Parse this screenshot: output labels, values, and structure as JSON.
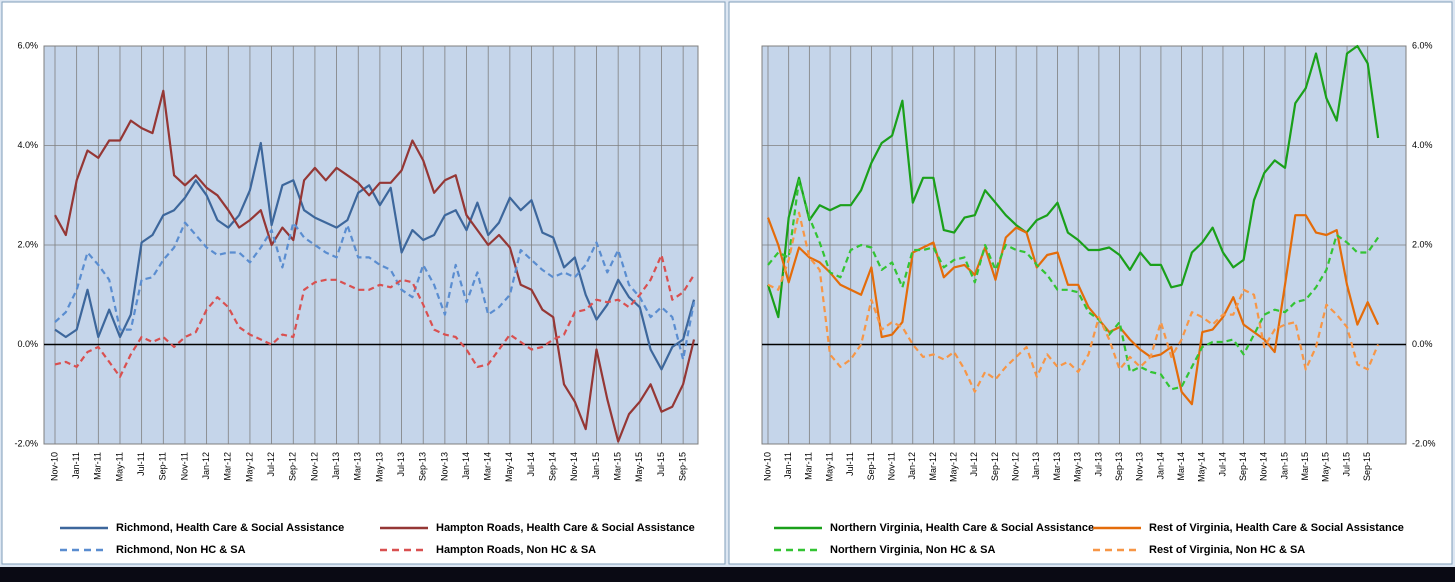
{
  "chart_data": [
    {
      "type": "line",
      "categories": [
        "Nov-10",
        null,
        "Jan-11",
        null,
        "Mar-11",
        null,
        "May-11",
        null,
        "Jul-11",
        null,
        "Sep-11",
        null,
        "Nov-11",
        null,
        "Jan-12",
        null,
        "Mar-12",
        null,
        "May-12",
        null,
        "Jul-12",
        null,
        "Sep-12",
        null,
        "Nov-12",
        null,
        "Jan-13",
        null,
        "Mar-13",
        null,
        "May-13",
        null,
        "Jul-13",
        null,
        "Sep-13",
        null,
        "Nov-13",
        null,
        "Jan-14",
        null,
        "Mar-14",
        null,
        "May-14",
        null,
        "Jul-14",
        null,
        "Sep-14",
        null,
        "Nov-14",
        null,
        "Jan-15",
        null,
        "Mar-15",
        null,
        "May-15",
        null,
        "Jul-15",
        null,
        "Sep-15",
        null
      ],
      "ylim": [
        -2,
        6
      ],
      "yticks": [
        {
          "value": -2,
          "label": "-2.0%"
        },
        {
          "value": 0,
          "label": "0.0%"
        },
        {
          "value": 2,
          "label": "2.0%"
        },
        {
          "value": 4,
          "label": "4.0%"
        },
        {
          "value": 6,
          "label": "6.0%"
        }
      ],
      "grid": true,
      "series": [
        {
          "name": "Richmond, Health Care & Social Assistance",
          "color": "#3d679c",
          "dashed": false,
          "values": [
            0.3,
            0.15,
            0.3,
            1.1,
            0.15,
            0.7,
            0.15,
            0.6,
            2.05,
            2.2,
            2.6,
            2.7,
            2.95,
            3.3,
            3.0,
            2.5,
            2.35,
            2.6,
            3.1,
            4.05,
            2.4,
            3.2,
            3.3,
            2.7,
            2.55,
            2.45,
            2.35,
            2.5,
            3.05,
            3.2,
            2.8,
            3.15,
            1.85,
            2.3,
            2.1,
            2.2,
            2.6,
            2.7,
            2.3,
            2.85,
            2.2,
            2.45,
            2.95,
            2.7,
            2.9,
            2.25,
            2.15,
            1.55,
            1.75,
            1.0,
            0.5,
            0.8,
            1.3,
            0.95,
            0.75,
            -0.1,
            -0.5,
            -0.05,
            0.1,
            0.9
          ]
        },
        {
          "name": "Hampton Roads, Health Care & Social Assistance",
          "color": "#953735",
          "dashed": false,
          "values": [
            2.6,
            2.2,
            3.3,
            3.9,
            3.75,
            4.1,
            4.1,
            4.5,
            4.35,
            4.25,
            5.1,
            3.4,
            3.2,
            3.4,
            3.15,
            3.0,
            2.7,
            2.35,
            2.5,
            2.7,
            2.0,
            2.35,
            2.1,
            3.3,
            3.55,
            3.3,
            3.55,
            3.4,
            3.25,
            3.0,
            3.25,
            3.25,
            3.5,
            4.1,
            3.7,
            3.05,
            3.3,
            3.4,
            2.6,
            2.3,
            2.0,
            2.2,
            1.95,
            1.2,
            1.1,
            0.7,
            0.55,
            -0.8,
            -1.15,
            -1.7,
            -0.1,
            -1.1,
            -1.95,
            -1.4,
            -1.15,
            -0.8,
            -1.35,
            -1.25,
            -0.8,
            0.1
          ]
        },
        {
          "name": "Richmond, Non HC & SA",
          "color": "#5a8dd0",
          "dashed": true,
          "values": [
            0.45,
            0.65,
            1.1,
            1.85,
            1.6,
            1.3,
            0.3,
            0.3,
            1.3,
            1.35,
            1.7,
            1.95,
            2.45,
            2.2,
            1.95,
            1.8,
            1.85,
            1.85,
            1.65,
            1.95,
            2.3,
            1.55,
            2.45,
            2.15,
            2.0,
            1.85,
            1.75,
            2.4,
            1.75,
            1.75,
            1.6,
            1.5,
            1.1,
            0.95,
            1.6,
            1.2,
            0.6,
            1.6,
            0.85,
            1.45,
            0.6,
            0.75,
            1.0,
            1.9,
            1.7,
            1.5,
            1.35,
            1.45,
            1.35,
            1.6,
            2.05,
            1.45,
            1.9,
            1.2,
            0.95,
            0.55,
            0.75,
            0.55,
            -0.3,
            0.85
          ]
        },
        {
          "name": "Hampton Roads, Non HC & SA",
          "color": "#d95050",
          "dashed": true,
          "values": [
            -0.4,
            -0.35,
            -0.45,
            -0.15,
            -0.05,
            -0.35,
            -0.65,
            -0.2,
            0.15,
            0.05,
            0.15,
            -0.05,
            0.15,
            0.25,
            0.7,
            0.95,
            0.75,
            0.35,
            0.2,
            0.1,
            0.0,
            0.2,
            0.15,
            1.1,
            1.25,
            1.3,
            1.3,
            1.2,
            1.1,
            1.1,
            1.2,
            1.15,
            1.3,
            1.25,
            0.8,
            0.3,
            0.2,
            0.15,
            -0.1,
            -0.45,
            -0.4,
            -0.1,
            0.2,
            0.05,
            -0.1,
            -0.05,
            0.1,
            0.2,
            0.65,
            0.7,
            0.9,
            0.85,
            0.9,
            0.75,
            1.0,
            1.3,
            1.8,
            0.9,
            1.05,
            1.4
          ]
        }
      ]
    },
    {
      "type": "line",
      "categories": [
        "Nov-10",
        null,
        "Jan-11",
        null,
        "Mar-11",
        null,
        "May-11",
        null,
        "Jul-11",
        null,
        "Sep-11",
        null,
        "Nov-11",
        null,
        "Jan-12",
        null,
        "Mar-12",
        null,
        "May-12",
        null,
        "Jul-12",
        null,
        "Sep-12",
        null,
        "Nov-12",
        null,
        "Jan-13",
        null,
        "Mar-13",
        null,
        "May-13",
        null,
        "Jul-13",
        null,
        "Sep-13",
        null,
        "Nov-13",
        null,
        "Jan-14",
        null,
        "Mar-14",
        null,
        "May-14",
        null,
        "Jul-14",
        null,
        "Sep-14",
        null,
        "Nov-14",
        null,
        "Jan-15",
        null,
        "Mar-15",
        null,
        "May-15",
        null,
        "Jul-15",
        null,
        "Sep-15",
        null
      ],
      "ylim": [
        -2,
        6
      ],
      "yticks": [
        {
          "value": -2,
          "label": "-2.0%"
        },
        {
          "value": 0,
          "label": "0.0%"
        },
        {
          "value": 2,
          "label": "2.0%"
        },
        {
          "value": 4,
          "label": "4.0%"
        },
        {
          "value": 6,
          "label": "6.0%"
        }
      ],
      "grid": true,
      "series": [
        {
          "name": "Northern Virginia, Health Care & Social Assistance",
          "color": "#1aa01a",
          "dashed": false,
          "values": [
            1.2,
            0.55,
            2.55,
            3.35,
            2.5,
            2.8,
            2.7,
            2.8,
            2.8,
            3.1,
            3.65,
            4.05,
            4.2,
            4.9,
            2.85,
            3.35,
            3.35,
            2.3,
            2.25,
            2.55,
            2.6,
            3.1,
            2.85,
            2.6,
            2.4,
            2.25,
            2.5,
            2.6,
            2.85,
            2.25,
            2.1,
            1.9,
            1.9,
            1.95,
            1.8,
            1.5,
            1.85,
            1.6,
            1.6,
            1.15,
            1.2,
            1.85,
            2.05,
            2.35,
            1.85,
            1.55,
            1.7,
            2.9,
            3.45,
            3.7,
            3.55,
            4.85,
            5.15,
            5.85,
            4.95,
            4.5,
            5.85,
            6.0,
            5.65,
            4.15
          ]
        },
        {
          "name": "Rest of Virginia, Health Care & Social Assistance",
          "color": "#e46c0a",
          "dashed": false,
          "values": [
            2.55,
            2.0,
            1.25,
            1.95,
            1.75,
            1.65,
            1.45,
            1.2,
            1.1,
            1.0,
            1.55,
            0.15,
            0.2,
            0.45,
            1.85,
            1.95,
            2.05,
            1.35,
            1.55,
            1.6,
            1.4,
            1.95,
            1.3,
            2.15,
            2.35,
            2.25,
            1.55,
            1.8,
            1.85,
            1.2,
            1.2,
            0.75,
            0.5,
            0.25,
            0.35,
            0.1,
            -0.1,
            -0.25,
            -0.2,
            -0.05,
            -0.95,
            -1.2,
            0.25,
            0.3,
            0.55,
            0.95,
            0.4,
            0.25,
            0.1,
            -0.15,
            1.2,
            2.6,
            2.6,
            2.25,
            2.2,
            2.3,
            1.2,
            0.4,
            0.85,
            0.4
          ]
        },
        {
          "name": "Northern Virginia, Non HC & SA",
          "color": "#33c433",
          "dashed": true,
          "values": [
            1.6,
            1.85,
            1.75,
            3.3,
            2.55,
            2.05,
            1.45,
            1.35,
            1.9,
            2.0,
            1.95,
            1.5,
            1.65,
            1.15,
            1.9,
            1.9,
            1.95,
            1.55,
            1.7,
            1.75,
            1.25,
            2.0,
            1.5,
            2.0,
            1.9,
            1.85,
            1.6,
            1.4,
            1.1,
            1.1,
            1.05,
            0.65,
            0.5,
            0.2,
            0.45,
            -0.55,
            -0.45,
            -0.55,
            -0.6,
            -0.9,
            -0.85,
            -0.45,
            -0.05,
            0.05,
            0.05,
            0.1,
            -0.2,
            0.2,
            0.6,
            0.7,
            0.65,
            0.85,
            0.9,
            1.15,
            1.5,
            2.2,
            2.05,
            1.85,
            1.85,
            2.15
          ]
        },
        {
          "name": "Rest of Virginia, Non HC & SA",
          "color": "#f79646",
          "dashed": true,
          "values": [
            1.2,
            1.1,
            1.7,
            2.65,
            1.75,
            1.5,
            -0.2,
            -0.45,
            -0.3,
            0.0,
            0.9,
            0.3,
            0.45,
            0.35,
            0.0,
            -0.25,
            -0.2,
            -0.3,
            -0.15,
            -0.5,
            -0.95,
            -0.55,
            -0.7,
            -0.45,
            -0.25,
            -0.05,
            -0.65,
            -0.2,
            -0.45,
            -0.35,
            -0.55,
            -0.2,
            0.55,
            0.1,
            -0.5,
            -0.25,
            -0.45,
            -0.25,
            0.45,
            -0.25,
            0.1,
            0.65,
            0.55,
            0.4,
            0.6,
            0.6,
            1.1,
            1.0,
            -0.05,
            0.3,
            0.4,
            0.45,
            -0.5,
            -0.05,
            0.8,
            0.6,
            0.35,
            -0.4,
            -0.5,
            0.0
          ]
        }
      ]
    }
  ]
}
